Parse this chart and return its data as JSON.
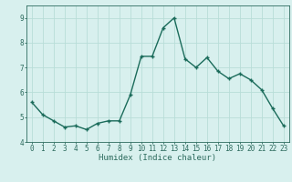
{
  "x": [
    0,
    1,
    2,
    3,
    4,
    5,
    6,
    7,
    8,
    9,
    10,
    11,
    12,
    13,
    14,
    15,
    16,
    17,
    18,
    19,
    20,
    21,
    22,
    23
  ],
  "y": [
    5.6,
    5.1,
    4.85,
    4.6,
    4.65,
    4.5,
    4.75,
    4.85,
    4.85,
    5.9,
    7.45,
    7.45,
    8.6,
    9.0,
    7.35,
    7.0,
    7.4,
    6.85,
    6.55,
    6.75,
    6.5,
    6.1,
    5.35,
    4.65
  ],
  "line_color": "#1a6b5a",
  "marker": "+",
  "markersize": 3.5,
  "linewidth": 1.0,
  "markeredgewidth": 1.0,
  "xlabel": "Humidex (Indice chaleur)",
  "xlim": [
    -0.5,
    23.5
  ],
  "ylim": [
    4,
    9.5
  ],
  "yticks": [
    4,
    5,
    6,
    7,
    8,
    9
  ],
  "xticks": [
    0,
    1,
    2,
    3,
    4,
    5,
    6,
    7,
    8,
    9,
    10,
    11,
    12,
    13,
    14,
    15,
    16,
    17,
    18,
    19,
    20,
    21,
    22,
    23
  ],
  "bg_color": "#d8f0ee",
  "grid_color": "#b8ddd8",
  "tick_color": "#2d6b5e",
  "xlabel_fontsize": 6.5,
  "tick_fontsize": 5.5,
  "ylabel_fontsize": 5.5
}
